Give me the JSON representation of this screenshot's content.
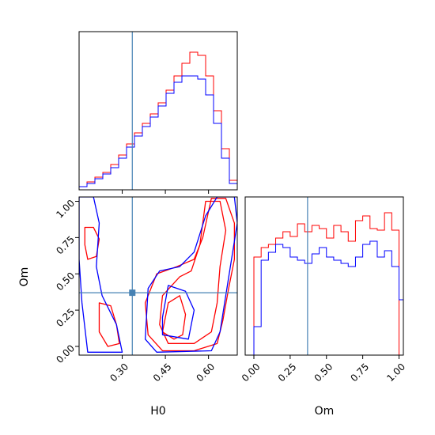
{
  "chart_data": {
    "type": "corner",
    "parameters": [
      "H0",
      "Om"
    ],
    "truth": {
      "H0": 0.335,
      "Om": 0.37
    },
    "colors": {
      "series_a": "#ff0000",
      "series_b": "#0000ff",
      "truth": "#4682b4"
    },
    "series": [
      {
        "color": "red"
      },
      {
        "color": "blue"
      }
    ],
    "panels": [
      {
        "id": "hist-H0",
        "type": "histogram",
        "xlim": [
          0.15,
          0.7
        ],
        "ylim": [
          0,
          1
        ],
        "bin_edges": [
          0.15,
          0.1775,
          0.205,
          0.2325,
          0.26,
          0.2875,
          0.315,
          0.3425,
          0.37,
          0.3975,
          0.425,
          0.4525,
          0.48,
          0.5075,
          0.535,
          0.5625,
          0.59,
          0.6175,
          0.645,
          0.6725,
          0.7
        ],
        "series_counts": {
          "red": [
            0.02,
            0.05,
            0.08,
            0.11,
            0.16,
            0.22,
            0.29,
            0.36,
            0.42,
            0.48,
            0.55,
            0.63,
            0.72,
            0.8,
            0.87,
            0.85,
            0.72,
            0.5,
            0.26,
            0.06
          ],
          "blue": [
            0.02,
            0.04,
            0.07,
            0.1,
            0.14,
            0.2,
            0.27,
            0.34,
            0.4,
            0.46,
            0.53,
            0.61,
            0.68,
            0.72,
            0.72,
            0.7,
            0.6,
            0.42,
            0.2,
            0.04
          ]
        },
        "xticks": [
          0.3,
          0.45,
          0.6
        ],
        "xtick_labels": [
          "",
          "",
          ""
        ]
      },
      {
        "id": "contour-H0-Om",
        "type": "contour",
        "xlim": [
          0.15,
          0.7
        ],
        "ylim": [
          -0.06,
          1.03
        ],
        "xticks": [
          0.3,
          0.45,
          0.6
        ],
        "xtick_labels": [
          "0.30",
          "0.45",
          "0.60"
        ],
        "yticks": [
          0.0,
          0.25,
          0.5,
          0.75,
          1.0
        ],
        "ytick_labels": [
          "0.00",
          "0.25",
          "0.50",
          "0.75",
          "1.00"
        ],
        "xlabel": "H0",
        "ylabel": "Om",
        "contours": {
          "red": [
            [
              [
                0.61,
                1.02
              ],
              [
                0.66,
                1.02
              ],
              [
                0.69,
                0.85
              ],
              [
                0.69,
                0.6
              ],
              [
                0.67,
                0.4
              ],
              [
                0.65,
                0.18
              ],
              [
                0.63,
                0.02
              ],
              [
                0.55,
                -0.03
              ],
              [
                0.44,
                -0.03
              ],
              [
                0.39,
                0.08
              ],
              [
                0.38,
                0.3
              ],
              [
                0.42,
                0.5
              ],
              [
                0.49,
                0.55
              ],
              [
                0.55,
                0.6
              ],
              [
                0.58,
                0.75
              ],
              [
                0.61,
                1.02
              ]
            ],
            [
              [
                0.59,
                1.0
              ],
              [
                0.64,
                1.0
              ],
              [
                0.66,
                0.8
              ],
              [
                0.64,
                0.55
              ],
              [
                0.63,
                0.3
              ],
              [
                0.61,
                0.1
              ],
              [
                0.55,
                0.02
              ],
              [
                0.46,
                0.02
              ],
              [
                0.43,
                0.15
              ],
              [
                0.44,
                0.35
              ],
              [
                0.5,
                0.48
              ],
              [
                0.54,
                0.52
              ],
              [
                0.57,
                0.7
              ],
              [
                0.59,
                1.0
              ]
            ],
            [
              [
                0.44,
                0.1
              ],
              [
                0.48,
                0.05
              ],
              [
                0.51,
                0.08
              ],
              [
                0.52,
                0.22
              ],
              [
                0.5,
                0.35
              ],
              [
                0.46,
                0.3
              ],
              [
                0.44,
                0.1
              ]
            ],
            [
              [
                0.17,
                0.82
              ],
              [
                0.2,
                0.82
              ],
              [
                0.22,
                0.74
              ],
              [
                0.21,
                0.62
              ],
              [
                0.18,
                0.6
              ],
              [
                0.17,
                0.7
              ],
              [
                0.17,
                0.82
              ]
            ],
            [
              [
                0.22,
                0.3
              ],
              [
                0.26,
                0.28
              ],
              [
                0.28,
                0.15
              ],
              [
                0.29,
                0.02
              ],
              [
                0.25,
                0.0
              ],
              [
                0.22,
                0.1
              ],
              [
                0.22,
                0.3
              ]
            ]
          ],
          "blue": [
            [
              [
                0.63,
                1.03
              ],
              [
                0.69,
                1.03
              ],
              [
                0.7,
                0.85
              ],
              [
                0.68,
                0.6
              ],
              [
                0.66,
                0.35
              ],
              [
                0.64,
                0.1
              ],
              [
                0.61,
                -0.03
              ],
              [
                0.42,
                -0.04
              ],
              [
                0.38,
                0.05
              ],
              [
                0.39,
                0.4
              ],
              [
                0.43,
                0.52
              ],
              [
                0.5,
                0.55
              ],
              [
                0.55,
                0.65
              ],
              [
                0.59,
                0.9
              ],
              [
                0.63,
                1.03
              ]
            ],
            [
              [
                0.44,
                0.08
              ],
              [
                0.53,
                0.05
              ],
              [
                0.55,
                0.25
              ],
              [
                0.52,
                0.38
              ],
              [
                0.46,
                0.42
              ],
              [
                0.44,
                0.2
              ],
              [
                0.44,
                0.08
              ]
            ],
            [
              [
                0.15,
                1.03
              ],
              [
                0.2,
                1.03
              ],
              [
                0.22,
                0.85
              ],
              [
                0.21,
                0.55
              ],
              [
                0.23,
                0.35
              ],
              [
                0.28,
                0.15
              ],
              [
                0.3,
                -0.04
              ],
              [
                0.18,
                -0.04
              ],
              [
                0.16,
                0.3
              ],
              [
                0.15,
                0.6
              ],
              [
                0.15,
                1.03
              ]
            ]
          ]
        }
      },
      {
        "id": "hist-Om",
        "type": "histogram",
        "xlim": [
          -0.06,
          1.03
        ],
        "ylim": [
          0,
          1
        ],
        "bin_edges": [
          -0.06,
          0.0,
          0.05,
          0.1,
          0.15,
          0.2,
          0.25,
          0.3,
          0.35,
          0.4,
          0.45,
          0.5,
          0.55,
          0.6,
          0.65,
          0.7,
          0.75,
          0.8,
          0.85,
          0.9,
          0.95,
          1.0,
          1.03
        ],
        "series_counts": {
          "red": [
            0.0,
            0.62,
            0.68,
            0.7,
            0.74,
            0.78,
            0.75,
            0.83,
            0.78,
            0.82,
            0.8,
            0.74,
            0.82,
            0.78,
            0.72,
            0.85,
            0.88,
            0.8,
            0.79,
            0.9,
            0.79,
            0.0
          ],
          "blue": [
            0.0,
            0.18,
            0.6,
            0.65,
            0.7,
            0.68,
            0.62,
            0.6,
            0.58,
            0.64,
            0.68,
            0.62,
            0.6,
            0.58,
            0.56,
            0.62,
            0.7,
            0.72,
            0.62,
            0.66,
            0.56,
            0.35
          ]
        },
        "xticks": [
          0.0,
          0.25,
          0.5,
          0.75,
          1.0
        ],
        "xtick_labels": [
          "0.00",
          "0.25",
          "0.50",
          "0.75",
          "1.00"
        ],
        "xlabel": "Om"
      }
    ],
    "grid": false,
    "legend": "none"
  }
}
